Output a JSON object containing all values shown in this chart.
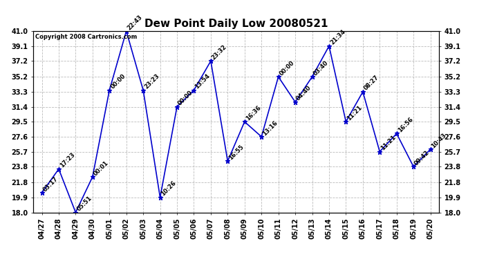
{
  "title": "Dew Point Daily Low 20080521",
  "copyright": "Copyright 2008 Cartronics.com",
  "dates": [
    "04/27",
    "04/28",
    "04/29",
    "04/30",
    "05/01",
    "05/02",
    "05/03",
    "05/04",
    "05/05",
    "05/06",
    "05/07",
    "05/08",
    "05/09",
    "05/10",
    "05/11",
    "05/12",
    "05/13",
    "05/14",
    "05/15",
    "05/16",
    "05/17",
    "05/18",
    "05/19",
    "05/20"
  ],
  "values": [
    20.5,
    23.5,
    18.0,
    22.5,
    33.5,
    41.0,
    33.5,
    19.9,
    31.4,
    33.5,
    37.2,
    24.5,
    29.5,
    27.6,
    35.2,
    32.0,
    35.2,
    39.1,
    29.5,
    33.3,
    25.7,
    28.0,
    23.8,
    26.0
  ],
  "labels": [
    "03:17",
    "17:23",
    "05:51",
    "00:01",
    "00:00",
    "22:43",
    "23:23",
    "10:26",
    "00:00",
    "13:54",
    "23:32",
    "16:55",
    "16:36",
    "13:16",
    "00:00",
    "04:40",
    "03:40",
    "21:34",
    "11:21",
    "08:27",
    "11:21",
    "16:56",
    "09:42",
    "10:43"
  ],
  "ylim": [
    18.0,
    41.0
  ],
  "yticks": [
    18.0,
    19.9,
    21.8,
    23.8,
    25.7,
    27.6,
    29.5,
    31.4,
    33.3,
    35.2,
    37.2,
    39.1,
    41.0
  ],
  "line_color": "#0000cc",
  "marker_color": "#0000cc",
  "bg_color": "#ffffff",
  "plot_bg_color": "#ffffff",
  "grid_color": "#aaaaaa",
  "title_fontsize": 11,
  "label_fontsize": 6,
  "tick_fontsize": 7,
  "copyright_fontsize": 6
}
